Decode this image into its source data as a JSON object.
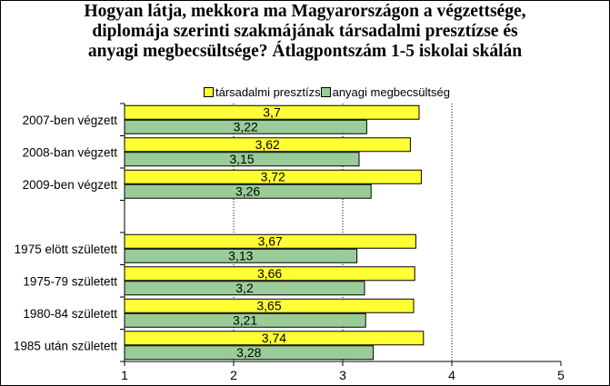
{
  "title_lines": [
    "Hogyan látja, mekkora ma Magyarországon a végzettsége,",
    "diplomája szerinti szakmájának társadalmi presztízse és",
    "anyagi megbecsültsége? Átlagpontszám 1-5 iskolai skálán"
  ],
  "colors": {
    "series1": "#ffff33",
    "series2": "#99cc99",
    "grid": "#000000",
    "axis": "#000000"
  },
  "chart_data": {
    "type": "bar",
    "orientation": "horizontal",
    "title": "Hogyan látja, mekkora ma Magyarországon a végzettsége, diplomája szerinti szakmájának társadalmi presztízse és anyagi megbecsültsége? Átlagpontszám 1-5 iskolai skálán",
    "categories": [
      "2007-ben végzett",
      "2008-ban végzett",
      "2009-ben végzett",
      "",
      "1975 elött született",
      "1975-79 született",
      "1980-84 született",
      "1985 után született"
    ],
    "series": [
      {
        "name": "társadalmi presztízs",
        "legend_label": "társadalmi presztízs",
        "values": [
          3.7,
          3.62,
          3.72,
          null,
          3.67,
          3.66,
          3.65,
          3.74
        ],
        "labels": [
          "3,7",
          "3,62",
          "3,72",
          "",
          "3,67",
          "3,66",
          "3,65",
          "3,74"
        ]
      },
      {
        "name": "anyagi megbecsültség",
        "legend_label": "anyagi megbecsültség",
        "values": [
          3.22,
          3.15,
          3.26,
          null,
          3.13,
          3.2,
          3.21,
          3.28
        ],
        "labels": [
          "3,22",
          "3,15",
          "3,26",
          "",
          "3,13",
          "3,2",
          "3,21",
          "3,28"
        ]
      }
    ],
    "xlim": [
      1,
      5
    ],
    "xticks": [
      "1",
      "2",
      "3",
      "4",
      "5"
    ],
    "grid": "vertical dotted",
    "legend_position": "top"
  }
}
